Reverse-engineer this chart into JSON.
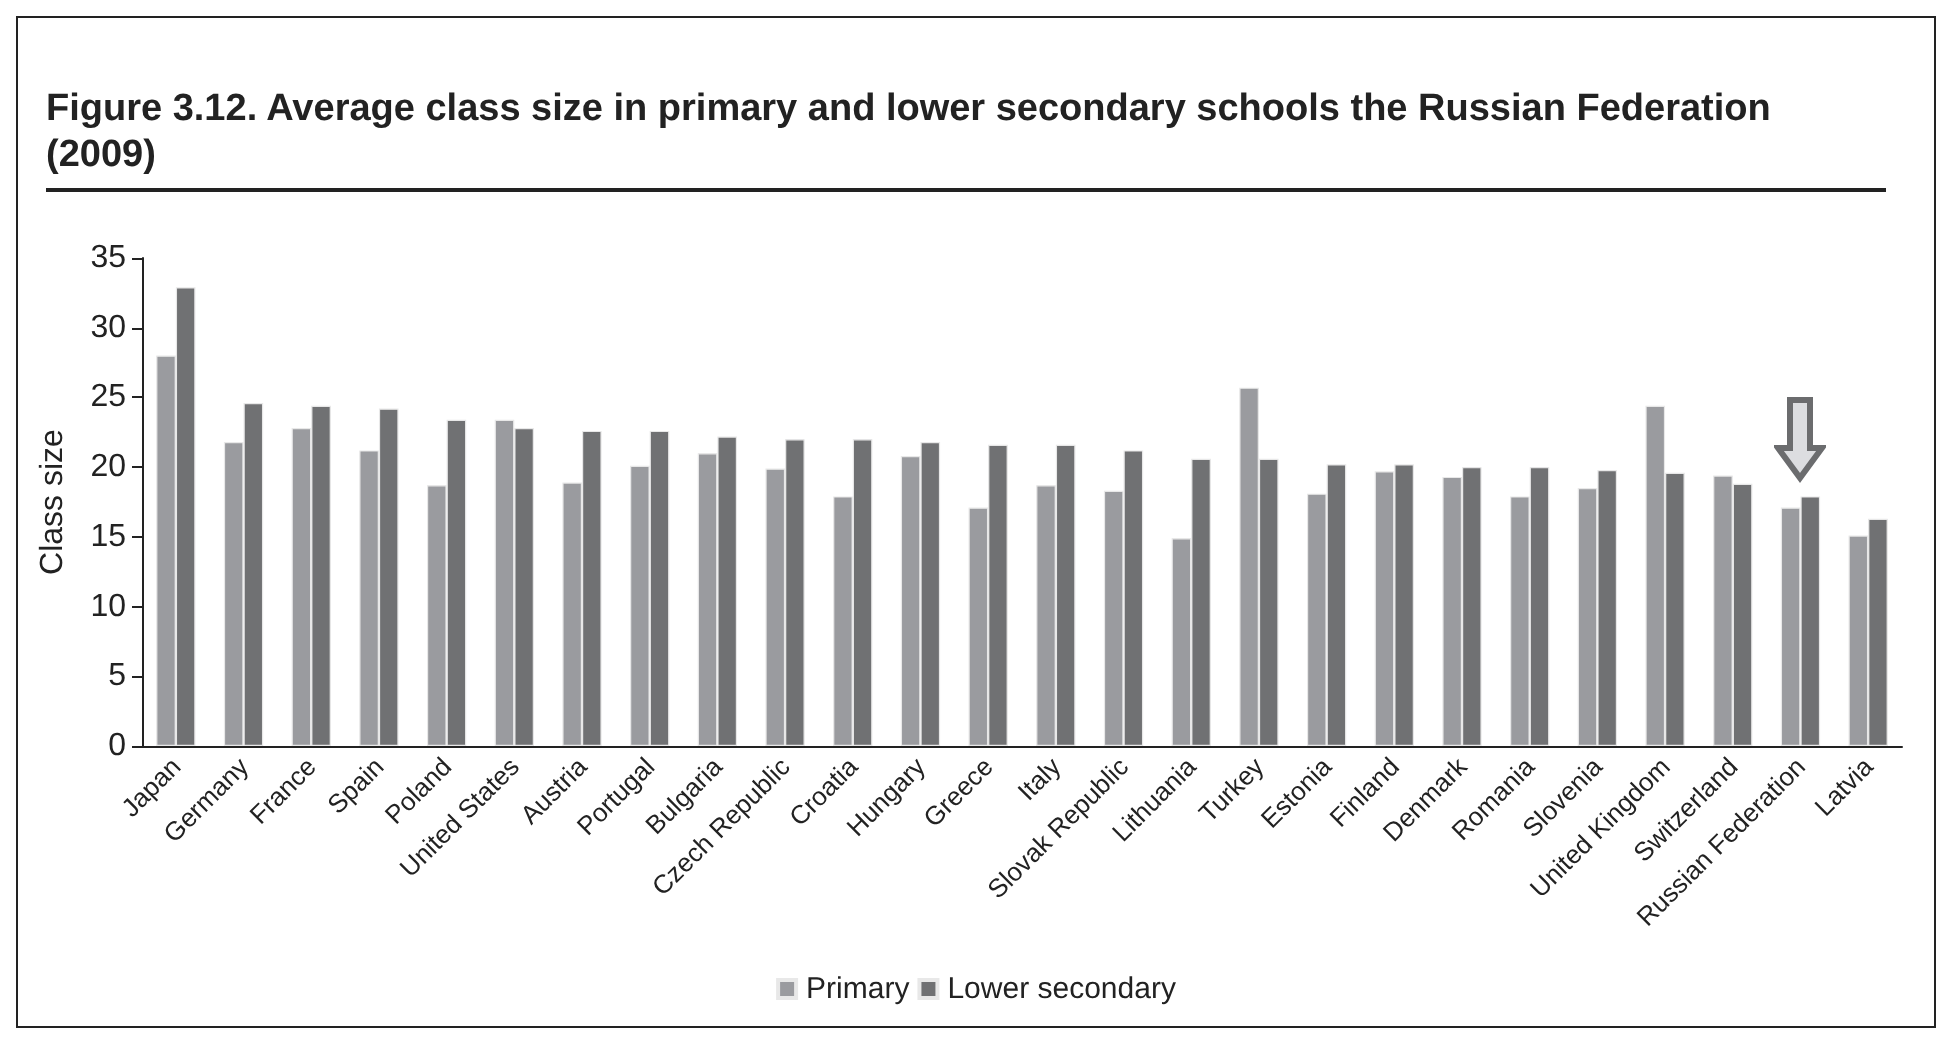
{
  "chart_data": {
    "type": "bar",
    "title": "Figure 3.12. Average class size in primary and lower secondary schools the Russian Federation (2009)",
    "ylabel": "Class size",
    "categories": [
      "Japan",
      "Germany",
      "France",
      "Spain",
      "Poland",
      "United States",
      "Austria",
      "Portugal",
      "Bulgaria",
      "Czech Republic",
      "Croatia",
      "Hungary",
      "Greece",
      "Italy",
      "Slovak Republic",
      "Lithuania",
      "Turkey",
      "Estonia",
      "Finland",
      "Denmark",
      "Romania",
      "Slovenia",
      "United Kingdom",
      "Switzerland",
      "Russian Federation",
      "Latvia"
    ],
    "series": [
      {
        "name": "Primary",
        "color": "#9a9b9f",
        "values": [
          28,
          21.8,
          22.8,
          21.2,
          18.7,
          23.4,
          18.9,
          20.1,
          21,
          19.9,
          17.9,
          20.8,
          17.1,
          18.7,
          18.3,
          14.9,
          25.7,
          18.1,
          19.7,
          19.3,
          17.9,
          18.5,
          24.4,
          19.4,
          17.1,
          15.1
        ]
      },
      {
        "name": "Lower secondary",
        "color": "#707173",
        "values": [
          32.9,
          24.6,
          24.4,
          24.2,
          23.4,
          22.8,
          22.6,
          22.6,
          22.2,
          22,
          22,
          21.8,
          21.6,
          21.6,
          21.2,
          20.6,
          20.6,
          20.2,
          20.2,
          20,
          20,
          19.8,
          19.6,
          18.8,
          17.9,
          16.3
        ]
      }
    ],
    "ylim": [
      0,
      35
    ],
    "yticks": [
      0,
      5,
      10,
      15,
      20,
      25,
      30,
      35
    ],
    "grid": false,
    "legend": "bottom"
  }
}
